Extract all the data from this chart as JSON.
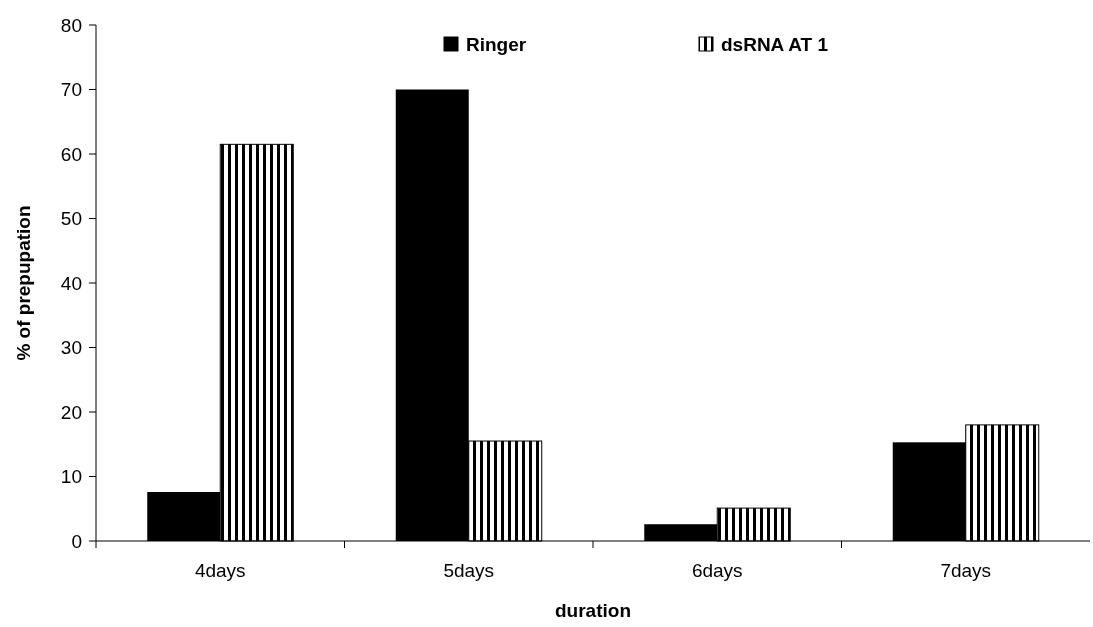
{
  "chart_data": {
    "type": "bar",
    "xlabel": "duration",
    "ylabel": "% of prepupation",
    "categories": [
      "4days",
      "5days",
      "6days",
      "7days"
    ],
    "series": [
      {
        "name": "Ringer",
        "color": "#000000",
        "values": [
          7.6,
          70,
          2.6,
          15.3
        ]
      },
      {
        "name": "dsRNA AT 1",
        "color": "#000000",
        "values": [
          61.5,
          15.5,
          5.1,
          18
        ]
      }
    ],
    "ylim": [
      0,
      80
    ],
    "yticks": [
      0,
      10,
      20,
      30,
      40,
      50,
      60,
      70,
      80
    ],
    "grid": false,
    "legend": "top"
  }
}
